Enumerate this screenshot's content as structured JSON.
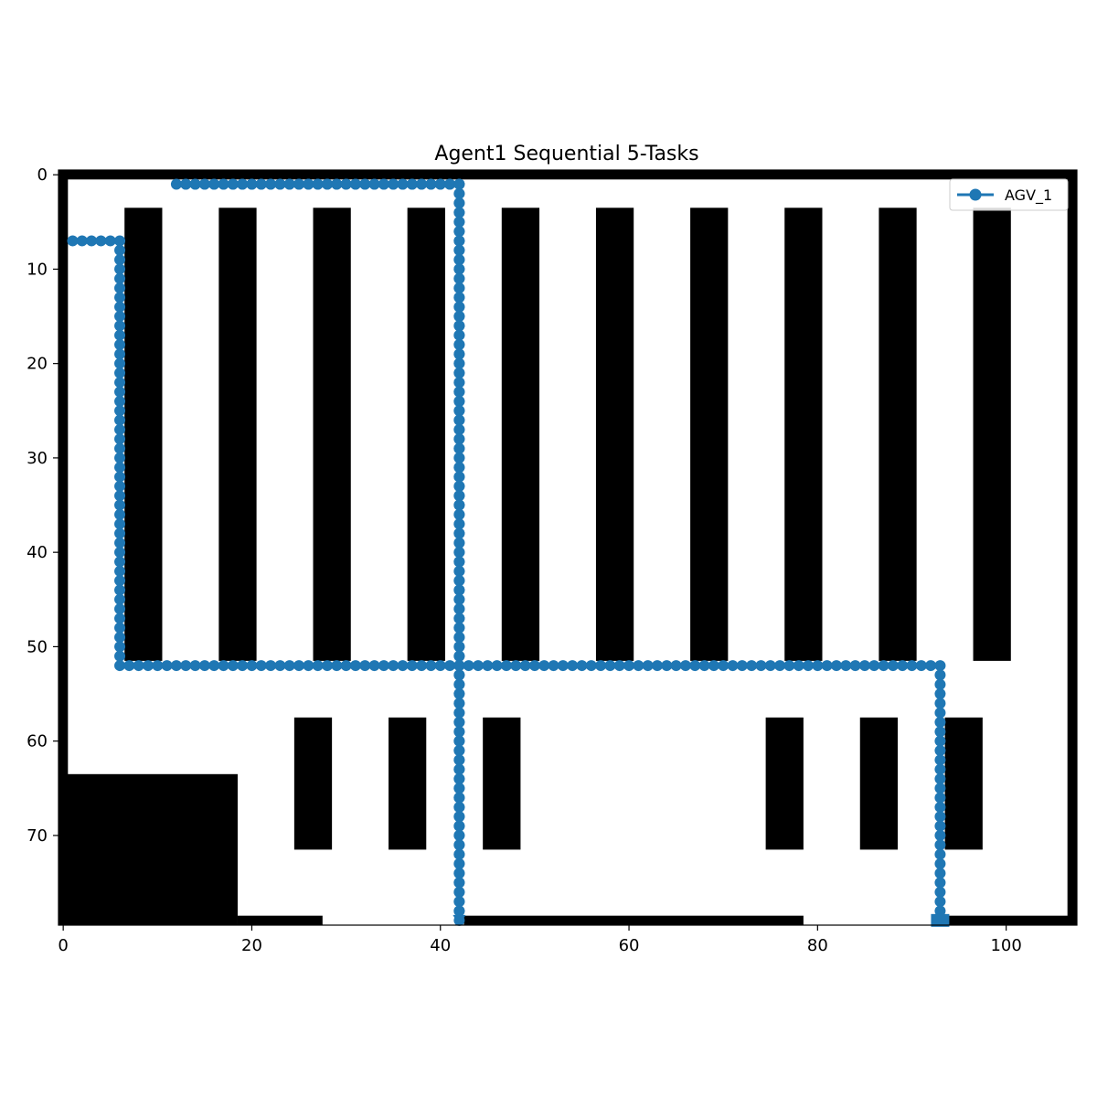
{
  "chart_data": {
    "type": "line",
    "title": "Agent1 Sequential 5-Tasks",
    "xlabel": "",
    "ylabel": "",
    "xlim": [
      -0.5,
      107.5
    ],
    "ylim": [
      79.5,
      -0.5
    ],
    "y_inverted": true,
    "grid": false,
    "legend": {
      "placement": "top-right",
      "entries": [
        "AGV_1"
      ]
    },
    "x_ticks": [
      0,
      20,
      40,
      60,
      80,
      100
    ],
    "y_ticks": [
      0,
      10,
      20,
      30,
      40,
      50,
      60,
      70
    ],
    "series": [
      {
        "name": "AGV_1",
        "color": "#1f77b4",
        "marker": "circle",
        "path_corners": [
          [
            1,
            7
          ],
          [
            6,
            7
          ],
          [
            6,
            52
          ],
          [
            42,
            52
          ],
          [
            42,
            79
          ],
          [
            42,
            1
          ],
          [
            12,
            1
          ],
          [
            12,
            1
          ],
          [
            42,
            1
          ],
          [
            42,
            52
          ],
          [
            93,
            52
          ],
          [
            93,
            79
          ]
        ]
      }
    ],
    "map": {
      "colors": {
        "obstacle": "#000000",
        "free": "#ffffff"
      },
      "obstacles": [
        {
          "x0": -0.5,
          "x1": 107.5,
          "y0": -0.5,
          "y1": 0.5
        },
        {
          "x0": -0.5,
          "x1": 0.5,
          "y0": -0.5,
          "y1": 79.5
        },
        {
          "x0": 106.5,
          "x1": 107.5,
          "y0": -0.5,
          "y1": 79.5
        },
        {
          "x0": -0.5,
          "x1": 18.5,
          "y0": 63.5,
          "y1": 79.5
        },
        {
          "x0": 18.5,
          "x1": 27.5,
          "y0": 78.5,
          "y1": 79.5
        },
        {
          "x0": 42.5,
          "x1": 78.5,
          "y0": 78.5,
          "y1": 79.5
        },
        {
          "x0": 93.5,
          "x1": 107.5,
          "y0": 78.5,
          "y1": 79.5
        },
        {
          "x0": 6.5,
          "x1": 10.5,
          "y0": 3.5,
          "y1": 51.5
        },
        {
          "x0": 16.5,
          "x1": 20.5,
          "y0": 3.5,
          "y1": 51.5
        },
        {
          "x0": 26.5,
          "x1": 30.5,
          "y0": 3.5,
          "y1": 51.5
        },
        {
          "x0": 36.5,
          "x1": 40.5,
          "y0": 3.5,
          "y1": 51.5
        },
        {
          "x0": 46.5,
          "x1": 50.5,
          "y0": 3.5,
          "y1": 51.5
        },
        {
          "x0": 56.5,
          "x1": 60.5,
          "y0": 3.5,
          "y1": 51.5
        },
        {
          "x0": 66.5,
          "x1": 70.5,
          "y0": 3.5,
          "y1": 51.5
        },
        {
          "x0": 76.5,
          "x1": 80.5,
          "y0": 3.5,
          "y1": 51.5
        },
        {
          "x0": 86.5,
          "x1": 90.5,
          "y0": 3.5,
          "y1": 51.5
        },
        {
          "x0": 96.5,
          "x1": 100.5,
          "y0": 3.5,
          "y1": 51.5
        },
        {
          "x0": 24.5,
          "x1": 28.5,
          "y0": 57.5,
          "y1": 71.5
        },
        {
          "x0": 34.5,
          "x1": 38.5,
          "y0": 57.5,
          "y1": 71.5
        },
        {
          "x0": 44.5,
          "x1": 48.5,
          "y0": 57.5,
          "y1": 71.5
        },
        {
          "x0": 74.5,
          "x1": 78.5,
          "y0": 57.5,
          "y1": 71.5
        },
        {
          "x0": 84.5,
          "x1": 88.5,
          "y0": 57.5,
          "y1": 71.5
        },
        {
          "x0": 93.5,
          "x1": 97.5,
          "y0": 57.5,
          "y1": 71.5
        }
      ]
    }
  }
}
